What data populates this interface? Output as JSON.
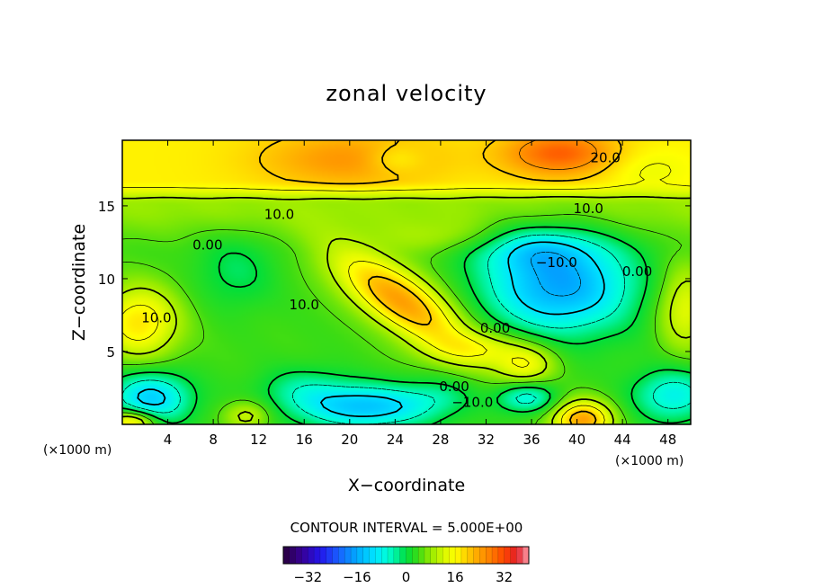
{
  "chart_data": {
    "type": "heatmap",
    "title": "zonal velocity",
    "xlabel": "X−coordinate",
    "ylabel": "Z−coordinate",
    "x_unit_label": "(×1000 m)",
    "z_unit_label": "(×1000 m)",
    "x_range": [
      0,
      50
    ],
    "z_range": [
      0,
      19.5
    ],
    "x_ticks": [
      4,
      8,
      12,
      16,
      20,
      24,
      28,
      32,
      36,
      40,
      44,
      48
    ],
    "z_ticks": [
      5,
      10,
      15
    ],
    "contour_interval_text": "CONTOUR INTERVAL = 5.000E+00",
    "contour_interval": 5.0,
    "colorbar": {
      "range": [
        -40,
        40
      ],
      "ticks": [
        -32,
        -16,
        0,
        16,
        32
      ],
      "tick_labels": [
        "−32",
        "−16",
        "0",
        "16",
        "32"
      ]
    },
    "contour_labels": [
      {
        "text": "20.0",
        "x": 42.5,
        "z": 18.3
      },
      {
        "text": "10.0",
        "x": 13.8,
        "z": 14.4
      },
      {
        "text": "10.0",
        "x": 41.0,
        "z": 14.8
      },
      {
        "text": "0.00",
        "x": 7.5,
        "z": 12.3
      },
      {
        "text": "−10.0",
        "x": 38.2,
        "z": 11.1
      },
      {
        "text": "0.00",
        "x": 45.3,
        "z": 10.5
      },
      {
        "text": "10.0",
        "x": 16.0,
        "z": 8.2
      },
      {
        "text": "10.0",
        "x": 3.0,
        "z": 7.3
      },
      {
        "text": "0.00",
        "x": 32.8,
        "z": 6.6
      },
      {
        "text": "0.00",
        "x": 29.2,
        "z": 2.6
      },
      {
        "text": "−10.0",
        "x": 30.8,
        "z": 1.5
      }
    ],
    "features": [
      {
        "kind": "max",
        "x": 22,
        "z": 18.0,
        "value": 25
      },
      {
        "kind": "max",
        "x": 38.5,
        "z": 18.5,
        "value": 30
      },
      {
        "kind": "min",
        "x": 24,
        "z": 18.2,
        "value": 14
      },
      {
        "kind": "max",
        "x": 24.5,
        "z": 8.5,
        "value": 28
      },
      {
        "kind": "max",
        "x": 35.5,
        "z": 4.0,
        "value": 22
      },
      {
        "kind": "max",
        "x": 40.5,
        "z": 0.5,
        "value": 25
      },
      {
        "kind": "max",
        "x": 0.5,
        "z": 0.5,
        "value": 25
      },
      {
        "kind": "min",
        "x": 38.5,
        "z": 9.5,
        "value": -15
      },
      {
        "kind": "min",
        "x": 2.0,
        "z": 1.8,
        "value": -12
      },
      {
        "kind": "min",
        "x": 22.0,
        "z": 1.0,
        "value": -13
      },
      {
        "kind": "min",
        "x": 48.5,
        "z": 2.0,
        "value": -10
      },
      {
        "kind": "min",
        "x": 35.5,
        "z": 1.8,
        "value": -7
      }
    ]
  }
}
